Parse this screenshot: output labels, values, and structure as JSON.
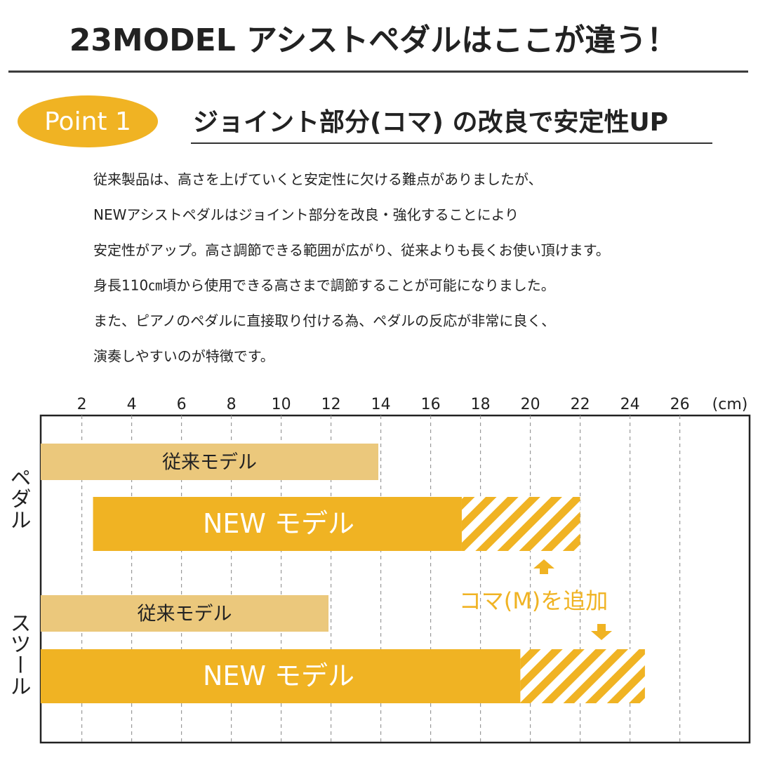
{
  "title": "23MODEL アシストペダルはここが違う！",
  "point_badge": "Point 1",
  "heading": "ジョイント部分(コマ) の改良で安定性UP",
  "paragraph": [
    "従来製品は、高さを上げていくと安定性に欠ける難点がありましたが、",
    "NEWアシストペダルはジョイント部分を改良・強化することにより",
    "安定性がアップ。高さ調節できる範囲が広がり、従来よりも長くお使い頂けます。",
    "身長110㎝頃から使用できる高さまで調節することが可能になりました。",
    "また、ピアノのペダルに直接取り付ける為、ペダルの反応が非常に良く、",
    "演奏しやすいのが特徴です。"
  ],
  "chart_data": {
    "type": "range_bar",
    "categories": [
      "ペダル",
      "スツール"
    ],
    "series": [
      {
        "name": "従来モデル",
        "color": "#ebc87c",
        "start": [
          0.35,
          0.35
        ],
        "values": [
          13.9,
          11.9
        ]
      },
      {
        "name": "NEW モデル",
        "color": "#f0b323",
        "start": [
          2.45,
          0.35
        ],
        "values": [
          17.25,
          19.6
        ],
        "extended_values": [
          22,
          24.6
        ]
      }
    ],
    "annotation": "コマ(M)を追加",
    "xunit": "(cm)",
    "xlim": [
      0.35,
      28.8
    ],
    "xticks": [
      2,
      4,
      6,
      8,
      10,
      12,
      14,
      16,
      18,
      20,
      22,
      24,
      26
    ],
    "grid": true
  }
}
